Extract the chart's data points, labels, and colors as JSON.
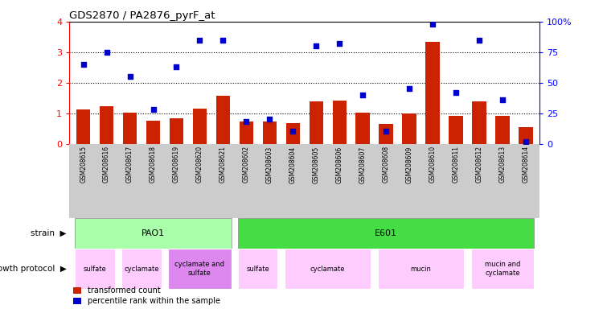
{
  "title": "GDS2870 / PA2876_pyrF_at",
  "samples": [
    "GSM208615",
    "GSM208616",
    "GSM208617",
    "GSM208618",
    "GSM208619",
    "GSM208620",
    "GSM208621",
    "GSM208602",
    "GSM208603",
    "GSM208604",
    "GSM208605",
    "GSM208606",
    "GSM208607",
    "GSM208608",
    "GSM208609",
    "GSM208610",
    "GSM208611",
    "GSM208612",
    "GSM208613",
    "GSM208614"
  ],
  "transformed_count": [
    1.13,
    1.22,
    1.02,
    0.75,
    0.82,
    1.15,
    1.58,
    0.72,
    0.72,
    0.68,
    1.38,
    1.4,
    1.02,
    0.65,
    1.0,
    3.35,
    0.92,
    1.38,
    0.92,
    0.55
  ],
  "percentile_rank": [
    65,
    75,
    55,
    28,
    63,
    85,
    85,
    18,
    20,
    10,
    80,
    82,
    40,
    10,
    45,
    98,
    42,
    85,
    36,
    2
  ],
  "red_color": "#cc2200",
  "blue_color": "#0000cc",
  "ylim_left": [
    0,
    4
  ],
  "ylim_right": [
    0,
    100
  ],
  "yticks_left": [
    0,
    1,
    2,
    3,
    4
  ],
  "yticks_right": [
    0,
    25,
    50,
    75,
    100
  ],
  "strain_bands": [
    {
      "label": "PAO1",
      "start": 0,
      "end": 6,
      "color": "#aaffaa"
    },
    {
      "label": "E601",
      "start": 7,
      "end": 19,
      "color": "#44dd44"
    }
  ],
  "growth_bands": [
    {
      "label": "sulfate",
      "start": 0,
      "end": 1,
      "color": "#ffccff"
    },
    {
      "label": "cyclamate",
      "start": 2,
      "end": 3,
      "color": "#ffccff"
    },
    {
      "label": "cyclamate and\nsulfate",
      "start": 4,
      "end": 6,
      "color": "#dd88ee"
    },
    {
      "label": "sulfate",
      "start": 7,
      "end": 8,
      "color": "#ffccff"
    },
    {
      "label": "cyclamate",
      "start": 9,
      "end": 12,
      "color": "#ffccff"
    },
    {
      "label": "mucin",
      "start": 13,
      "end": 16,
      "color": "#ffccff"
    },
    {
      "label": "mucin and\ncyclamate",
      "start": 17,
      "end": 19,
      "color": "#ffccff"
    }
  ],
  "bg_color": "#ffffff",
  "label_area_color": "#cccccc",
  "bar_width": 0.6
}
